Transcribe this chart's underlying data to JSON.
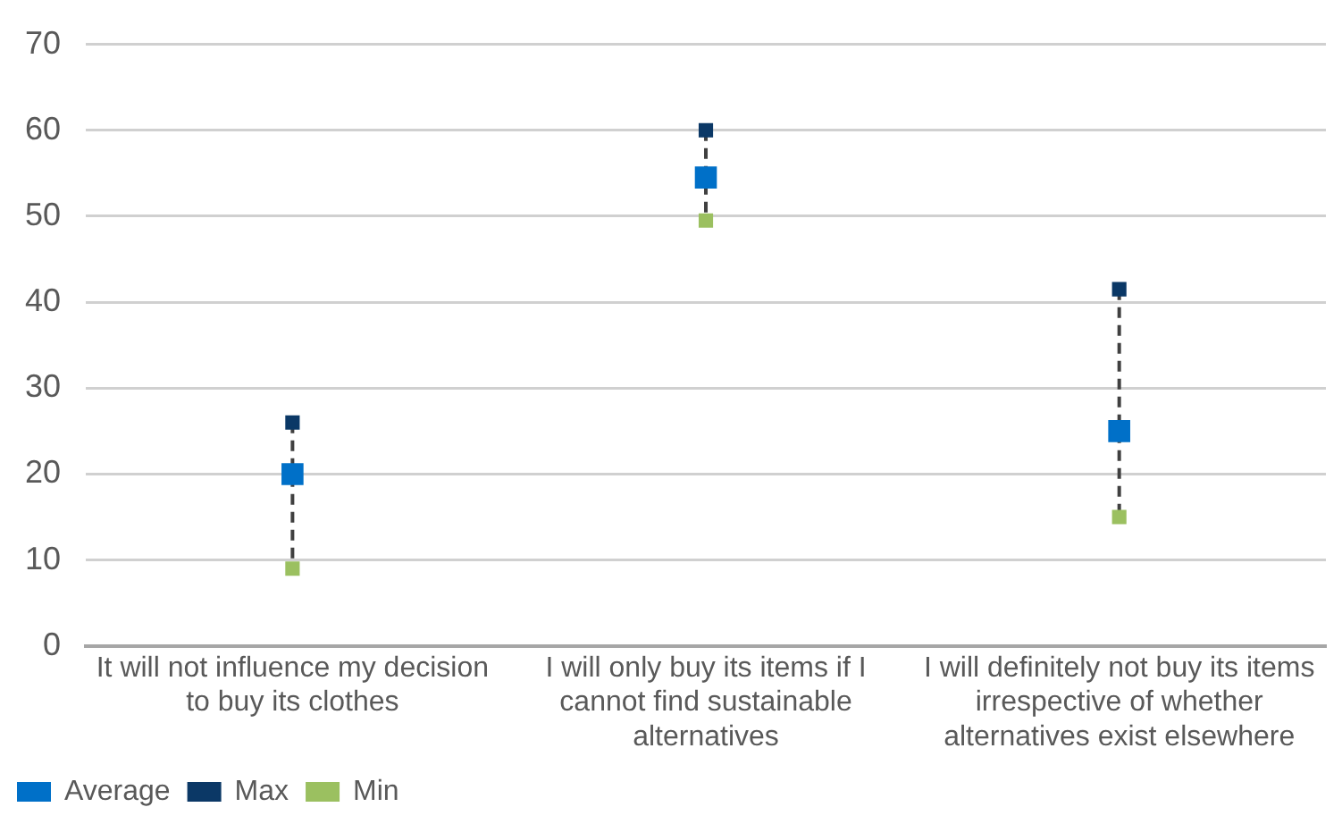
{
  "chart_data": {
    "type": "scatter",
    "categories": [
      "It will not influence my decision to buy its clothes",
      "I will only buy its items if I cannot find sustainable alternatives",
      "I will definitely not buy its items irrespective of whether alternatives exist elsewhere"
    ],
    "series": [
      {
        "name": "Average",
        "color": "#0070c8",
        "marker": "square",
        "values": [
          20,
          54.5,
          25
        ]
      },
      {
        "name": "Max",
        "color": "#0b3866",
        "marker": "square",
        "values": [
          26,
          60,
          41.5
        ]
      },
      {
        "name": "Min",
        "color": "#9bc060",
        "marker": "square",
        "values": [
          9,
          49.5,
          15
        ]
      }
    ],
    "ylim": [
      0,
      70
    ],
    "yticks": [
      0,
      10,
      20,
      30,
      40,
      50,
      60,
      70
    ],
    "grid": "y",
    "legend": "bottom left"
  }
}
